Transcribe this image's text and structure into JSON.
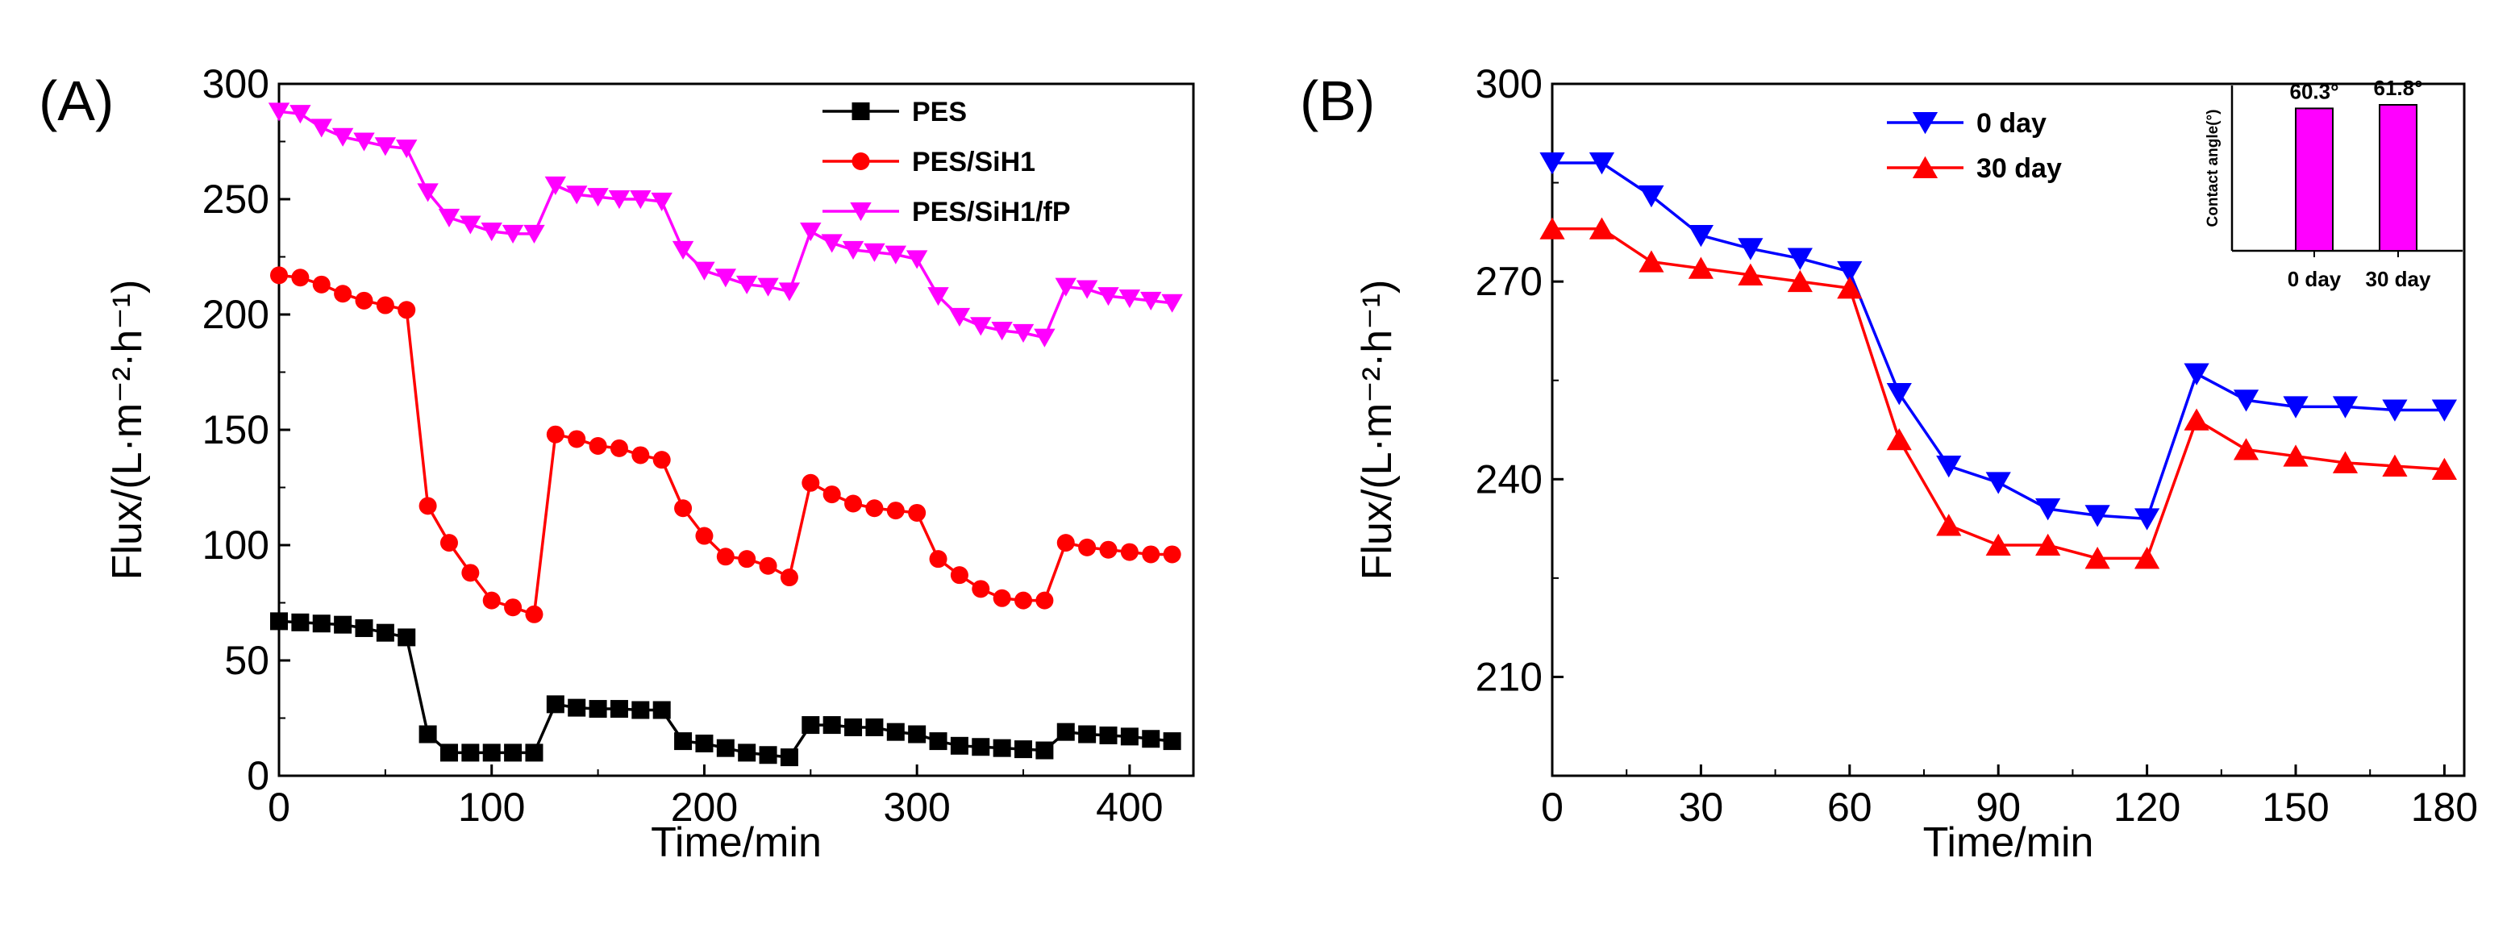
{
  "chart_data": [
    {
      "type": "line",
      "panel_label": "(A)",
      "xlabel": "Time/min",
      "ylabel": "Flux/(L·m⁻²·h⁻¹)",
      "xlim": [
        0,
        430
      ],
      "ylim": [
        0,
        300
      ],
      "xticks": [
        0,
        100,
        200,
        300,
        400
      ],
      "yticks": [
        0,
        50,
        100,
        150,
        200,
        250,
        300
      ],
      "x": [
        0,
        10,
        20,
        30,
        40,
        50,
        60,
        70,
        80,
        90,
        100,
        110,
        120,
        130,
        140,
        150,
        160,
        170,
        180,
        190,
        200,
        210,
        220,
        230,
        240,
        250,
        260,
        270,
        280,
        290,
        300,
        310,
        320,
        330,
        340,
        350,
        360,
        370,
        380,
        390,
        400,
        410,
        420
      ],
      "series": [
        {
          "name": "PES",
          "color": "#000000",
          "marker": "square",
          "values": [
            67,
            66.5,
            66,
            65.5,
            64,
            62,
            60,
            18,
            10,
            10,
            10,
            10,
            10,
            31,
            29.5,
            29,
            29,
            28.5,
            28.5,
            15,
            14,
            12,
            10,
            9,
            8,
            22,
            22,
            21,
            21,
            19,
            18,
            15,
            13,
            12.5,
            12,
            11.5,
            11,
            19,
            18,
            17.5,
            17,
            16,
            15
          ]
        },
        {
          "name": "PES/SiH1",
          "color": "#ff0000",
          "marker": "circle",
          "values": [
            217,
            216,
            213,
            209,
            206,
            204,
            202,
            117,
            101,
            88,
            76,
            73,
            70,
            148,
            146,
            143,
            142,
            139,
            137,
            116,
            104,
            95,
            94,
            91,
            86,
            127,
            122,
            118,
            116,
            115,
            114,
            94,
            87,
            81,
            77,
            76,
            76,
            101,
            99,
            98,
            97,
            96,
            96
          ]
        },
        {
          "name": "PES/SiH1/fP",
          "color": "#ff00ff",
          "marker": "triangle-down",
          "values": [
            288,
            287,
            281,
            277,
            275,
            273,
            272,
            253,
            242,
            239,
            236,
            235,
            235,
            256,
            252,
            251,
            250,
            250,
            249,
            228,
            219,
            216,
            213,
            212,
            210,
            236,
            231,
            228,
            227,
            226,
            224,
            208,
            199,
            195,
            193,
            192,
            190,
            212,
            211,
            208,
            207,
            206,
            205
          ]
        }
      ],
      "legend": "top-right"
    },
    {
      "type": "line",
      "panel_label": "(B)",
      "xlabel": "Time/min",
      "ylabel": "Flux/(L·m⁻²·h⁻¹)",
      "xlim": [
        0,
        184
      ],
      "ylim": [
        195,
        300
      ],
      "xticks": [
        0,
        30,
        60,
        90,
        120,
        150,
        180
      ],
      "yticks": [
        210,
        240,
        270,
        300
      ],
      "x": [
        0,
        10,
        20,
        30,
        40,
        50,
        60,
        70,
        80,
        90,
        100,
        110,
        120,
        130,
        140,
        150,
        160,
        170,
        180
      ],
      "series": [
        {
          "name": "0 day",
          "color": "#0000ff",
          "marker": "triangle-down",
          "values": [
            288,
            288,
            283,
            277,
            275,
            273.5,
            271.5,
            253,
            242,
            239.5,
            235.5,
            234.5,
            234,
            256,
            252,
            251,
            251,
            250.5,
            250.5
          ]
        },
        {
          "name": "30 day",
          "color": "#ff0000",
          "marker": "triangle-up",
          "values": [
            278,
            278,
            273,
            272,
            271,
            270,
            269,
            246,
            233,
            230,
            230,
            228,
            228,
            249,
            244.5,
            243.5,
            242.5,
            242,
            241.5
          ]
        }
      ],
      "legend": "top-left",
      "inset": {
        "type": "bar",
        "ylabel": "Contact angle(°)",
        "categories": [
          "0 day",
          "30 day"
        ],
        "values": [
          60.3,
          61.8
        ],
        "data_labels": [
          "60.3°",
          "61.8°"
        ],
        "color": "#ff00ff",
        "ylim": [
          0,
          70
        ]
      }
    }
  ]
}
